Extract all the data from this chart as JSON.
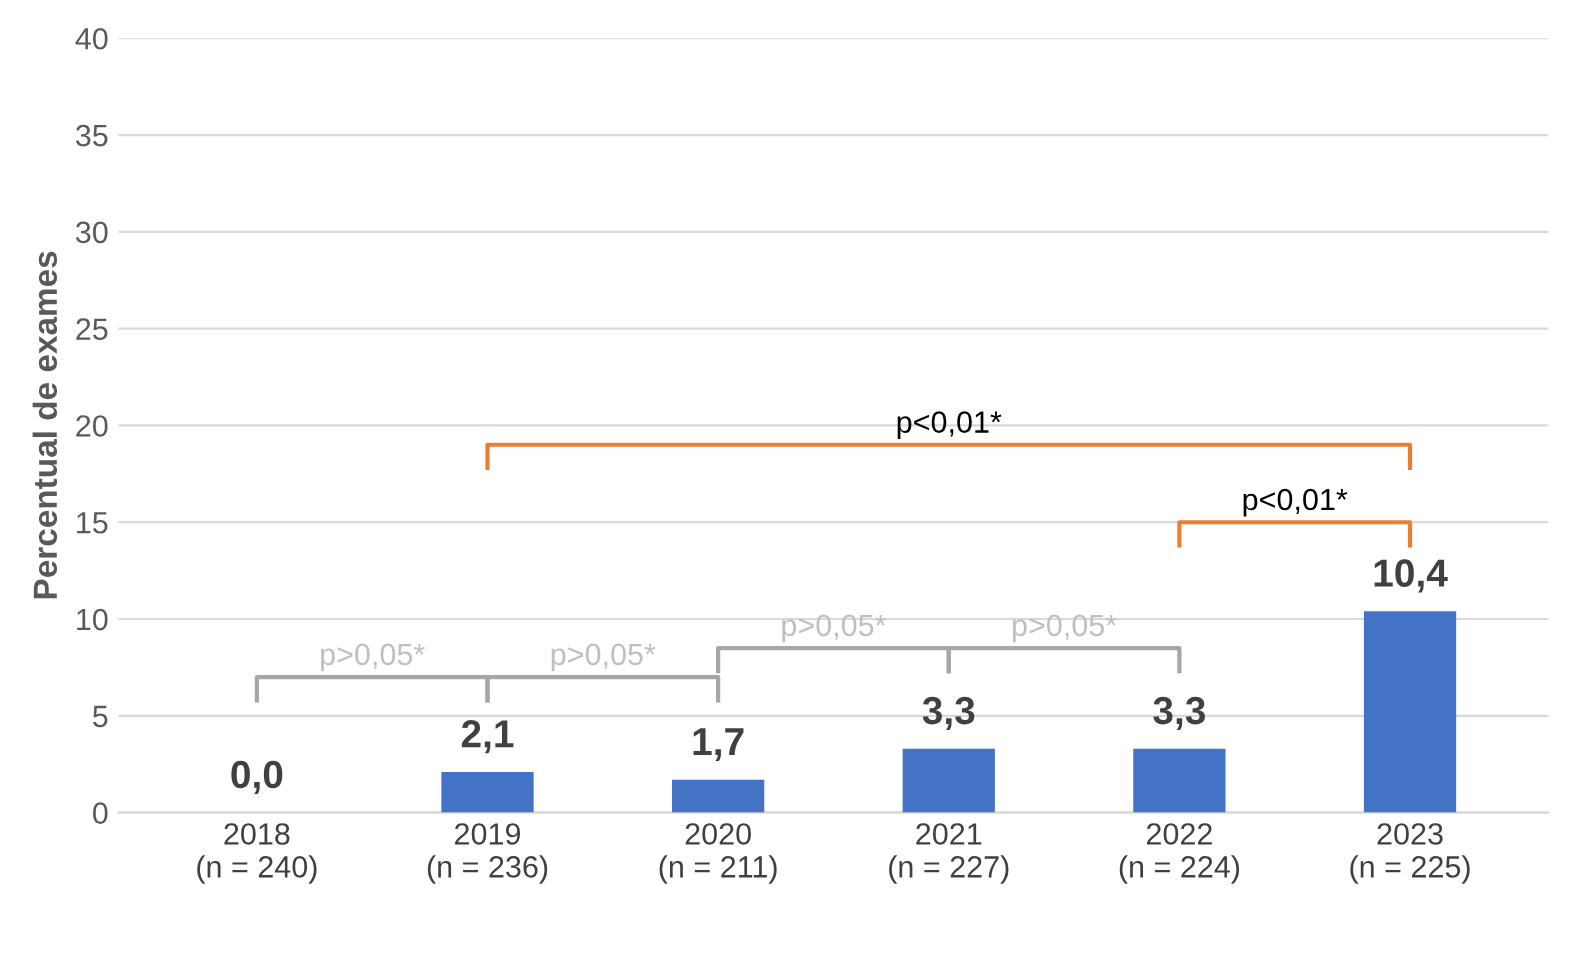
{
  "chart_data": {
    "type": "bar",
    "ylabel": "Percentual de exames",
    "categories": [
      "2018\n(n = 240)",
      "2019\n(n = 236)",
      "2020\n(n = 211)",
      "2021\n(n = 227)",
      "2022\n(n = 224)",
      "2023\n(n = 225)"
    ],
    "values": [
      0.0,
      2.1,
      1.7,
      3.3,
      3.3,
      10.4
    ],
    "value_labels": [
      "0,0",
      "2,1",
      "1,7",
      "3,3",
      "3,3",
      "10,4"
    ],
    "color": "#4472c4",
    "ylim": [
      0,
      40
    ],
    "yticks": [
      0,
      5,
      10,
      15,
      20,
      25,
      30,
      35,
      40
    ],
    "grid": "y",
    "annotations": [
      "p>0,05*",
      "p>0,05*",
      "p>0,05*",
      "p>0,05*",
      "p<0,01*",
      "p<0,01*"
    ]
  }
}
